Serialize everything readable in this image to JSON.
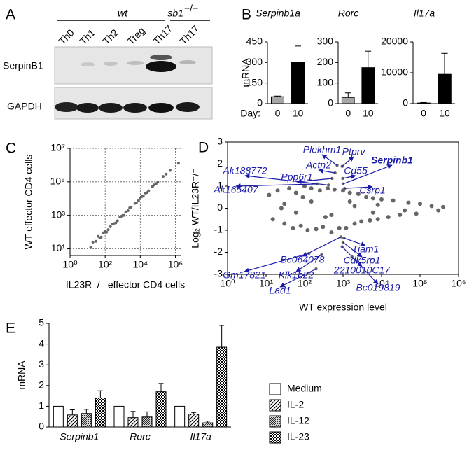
{
  "blot": {
    "panel": "A",
    "groups": [
      {
        "label": "wt"
      },
      {
        "label": "sb1",
        "superscript": "−/−"
      }
    ],
    "lanes": [
      "Th0",
      "Th1",
      "Th2",
      "Treg",
      "Th17",
      "Th17"
    ],
    "rows": [
      "SerpinB1",
      "GAPDH"
    ]
  },
  "chart_data": [
    {
      "type": "bar",
      "panel": "B",
      "title": "Serpinb1a",
      "ylabel": "mRNA",
      "xlabel": "Day:",
      "categories": [
        "0",
        "10"
      ],
      "values": [
        50,
        300
      ],
      "errors": [
        5,
        120
      ],
      "colors": [
        "#a6a6a6",
        "#000000"
      ],
      "ylim": [
        0,
        450
      ],
      "yticks": [
        0,
        150,
        300,
        450
      ]
    },
    {
      "type": "bar",
      "title": "Rorc",
      "categories": [
        "0",
        "10"
      ],
      "values": [
        30,
        175
      ],
      "errors": [
        22,
        80
      ],
      "colors": [
        "#a6a6a6",
        "#000000"
      ],
      "ylim": [
        0,
        300
      ],
      "yticks": [
        0,
        100,
        200,
        300
      ]
    },
    {
      "type": "bar",
      "title": "Il17a",
      "categories": [
        "0",
        "10"
      ],
      "values": [
        200,
        9500
      ],
      "errors": [
        150,
        6800
      ],
      "colors": [
        "#a6a6a6",
        "#000000"
      ],
      "ylim": [
        0,
        20000
      ],
      "yticks": [
        0,
        10000,
        20000
      ]
    },
    {
      "type": "scatter",
      "panel": "C",
      "ylabel": "WT effector CD4 cells",
      "xlabel": "IL23R⁻/⁻ effector CD4 cells",
      "xscale": "log",
      "yscale": "log",
      "grid": true,
      "color": "#666666",
      "xlim": [
        1,
        2000000
      ],
      "ylim": [
        4,
        10000000
      ],
      "xticks": [
        {
          "value": 1,
          "label": "10⁰"
        },
        {
          "value": 100,
          "label": "10²"
        },
        {
          "value": 10000,
          "label": "10⁴"
        },
        {
          "value": 1000000,
          "label": "10⁶"
        }
      ],
      "yticks": [
        {
          "value": 10,
          "label": "10¹"
        },
        {
          "value": 1000,
          "label": "10³"
        },
        {
          "value": 100000,
          "label": "10⁵"
        },
        {
          "value": 10000000,
          "label": "10⁷"
        }
      ],
      "x": [
        15,
        20,
        30,
        50,
        80,
        100,
        150,
        200,
        300,
        500,
        800,
        1000,
        1500,
        2000,
        3000,
        5000,
        8000,
        10000,
        15000,
        20000,
        30000,
        50000,
        80000,
        100000,
        200000,
        300000,
        500000,
        40,
        60,
        120,
        250,
        400,
        700,
        1200,
        2500,
        6000,
        12000,
        25000,
        60000,
        1500000
      ],
      "y": [
        12,
        25,
        28,
        45,
        90,
        110,
        140,
        210,
        320,
        470,
        850,
        980,
        1600,
        1900,
        3100,
        5200,
        7600,
        10500,
        14000,
        21000,
        29000,
        52000,
        78000,
        98000,
        210000,
        290000,
        480000,
        55,
        50,
        100,
        300,
        350,
        800,
        1000,
        2800,
        5500,
        13000,
        23000,
        65000,
        1300000
      ]
    },
    {
      "type": "scatter",
      "panel": "D",
      "ylabel": "Log₂ WT/IL23R⁻/⁻",
      "xlabel": "WT expression level",
      "xscale": "log",
      "grid": false,
      "frame": true,
      "color": "#666666",
      "annotation_color": "#1a1aa8",
      "xlim": [
        1,
        1000000
      ],
      "ylim": [
        -3,
        3
      ],
      "xticks": [
        {
          "value": 1,
          "label": "10⁰"
        },
        {
          "value": 10,
          "label": "10¹"
        },
        {
          "value": 100,
          "label": "10²"
        },
        {
          "value": 1000,
          "label": "10³"
        },
        {
          "value": 10000,
          "label": "10⁴"
        },
        {
          "value": 100000,
          "label": "10⁵"
        },
        {
          "value": 1000000,
          "label": "10⁶"
        }
      ],
      "yticks": [
        -3,
        -2,
        -1,
        0,
        1,
        2,
        3
      ],
      "x": [
        12,
        15,
        20,
        30,
        40,
        50,
        60,
        80,
        100,
        120,
        150,
        200,
        250,
        300,
        400,
        500,
        600,
        800,
        1000,
        1200,
        1500,
        2000,
        2500,
        3000,
        4000,
        5000,
        6000,
        8000,
        10000,
        15000,
        20000,
        30000,
        50000,
        80000,
        100000,
        200000,
        300000,
        400000,
        30,
        60,
        150,
        500,
        2000,
        8000,
        40000,
        25,
        90,
        350,
        1500,
        6000
      ],
      "y": [
        0.6,
        -0.5,
        0.8,
        -0.7,
        0.9,
        -0.9,
        0.7,
        -0.8,
        1.0,
        -1.0,
        0.9,
        -0.95,
        0.8,
        -0.85,
        0.9,
        -1.1,
        0.85,
        -0.9,
        0.8,
        -0.9,
        0.7,
        -0.7,
        0.65,
        -0.6,
        0.5,
        -0.55,
        0.45,
        -0.5,
        0.4,
        -0.4,
        0.35,
        -0.3,
        0.25,
        -0.25,
        0.2,
        0.1,
        -0.1,
        0.05,
        0.2,
        -0.2,
        0.3,
        -0.3,
        0.1,
        0.15,
        -0.1,
        0.0,
        0.5,
        -0.4,
        0.3,
        -0.2
      ],
      "annotations": [
        {
          "text": "Plekhm1",
          "x": 700,
          "y": 1.95
        },
        {
          "text": "Ptprv",
          "x": 950,
          "y": 1.9
        },
        {
          "text": "Actn2",
          "x": 620,
          "y": 1.6
        },
        {
          "text": "Ppp6r1",
          "x": 520,
          "y": 1.35
        },
        {
          "text": "Cd55",
          "x": 980,
          "y": 1.35
        },
        {
          "text": "Serpinb1",
          "x": 1000,
          "y": 1.1
        },
        {
          "text": "Ak188772",
          "x": 420,
          "y": 1.05
        },
        {
          "text": "Ak165407",
          "x": 220,
          "y": 1.1
        },
        {
          "text": "Csrp1",
          "x": 1100,
          "y": 0.9
        },
        {
          "text": "Tiam1",
          "x": 1050,
          "y": -1.35
        },
        {
          "text": "Bc064078",
          "x": 880,
          "y": -1.3
        },
        {
          "text": "Cdk5rp1",
          "x": 1000,
          "y": -1.55
        },
        {
          "text": "2210010C17",
          "x": 950,
          "y": -1.75
        },
        {
          "text": "Gm17821",
          "x": 130,
          "y": -2.05
        },
        {
          "text": "Klk1b22",
          "x": 280,
          "y": -2.1
        },
        {
          "text": "Bc019819",
          "x": 1700,
          "y": -2.2
        },
        {
          "text": "Lad1",
          "x": 200,
          "y": -2.75
        }
      ]
    },
    {
      "type": "bar",
      "panel": "E",
      "ylabel": "mRNA",
      "categories": [
        "Serpinb1",
        "Rorc",
        "Il17a"
      ],
      "series": [
        {
          "name": "Medium",
          "pattern": "none",
          "values": [
            1,
            1,
            1
          ]
        },
        {
          "name": "IL-2",
          "pattern": "hatch",
          "values": [
            0.58,
            0.45,
            0.62
          ],
          "errors": [
            0.25,
            0.3,
            0.08
          ]
        },
        {
          "name": "IL-12",
          "pattern": "hatch-dense",
          "values": [
            0.65,
            0.48,
            0.2
          ],
          "errors": [
            0.2,
            0.25,
            0.08
          ]
        },
        {
          "name": "IL-23",
          "pattern": "checker",
          "values": [
            1.4,
            1.7,
            3.85
          ],
          "errors": [
            0.35,
            0.4,
            1.05
          ]
        }
      ],
      "ylim": [
        0,
        5
      ],
      "yticks": [
        0,
        1,
        2,
        3,
        4,
        5
      ]
    }
  ]
}
